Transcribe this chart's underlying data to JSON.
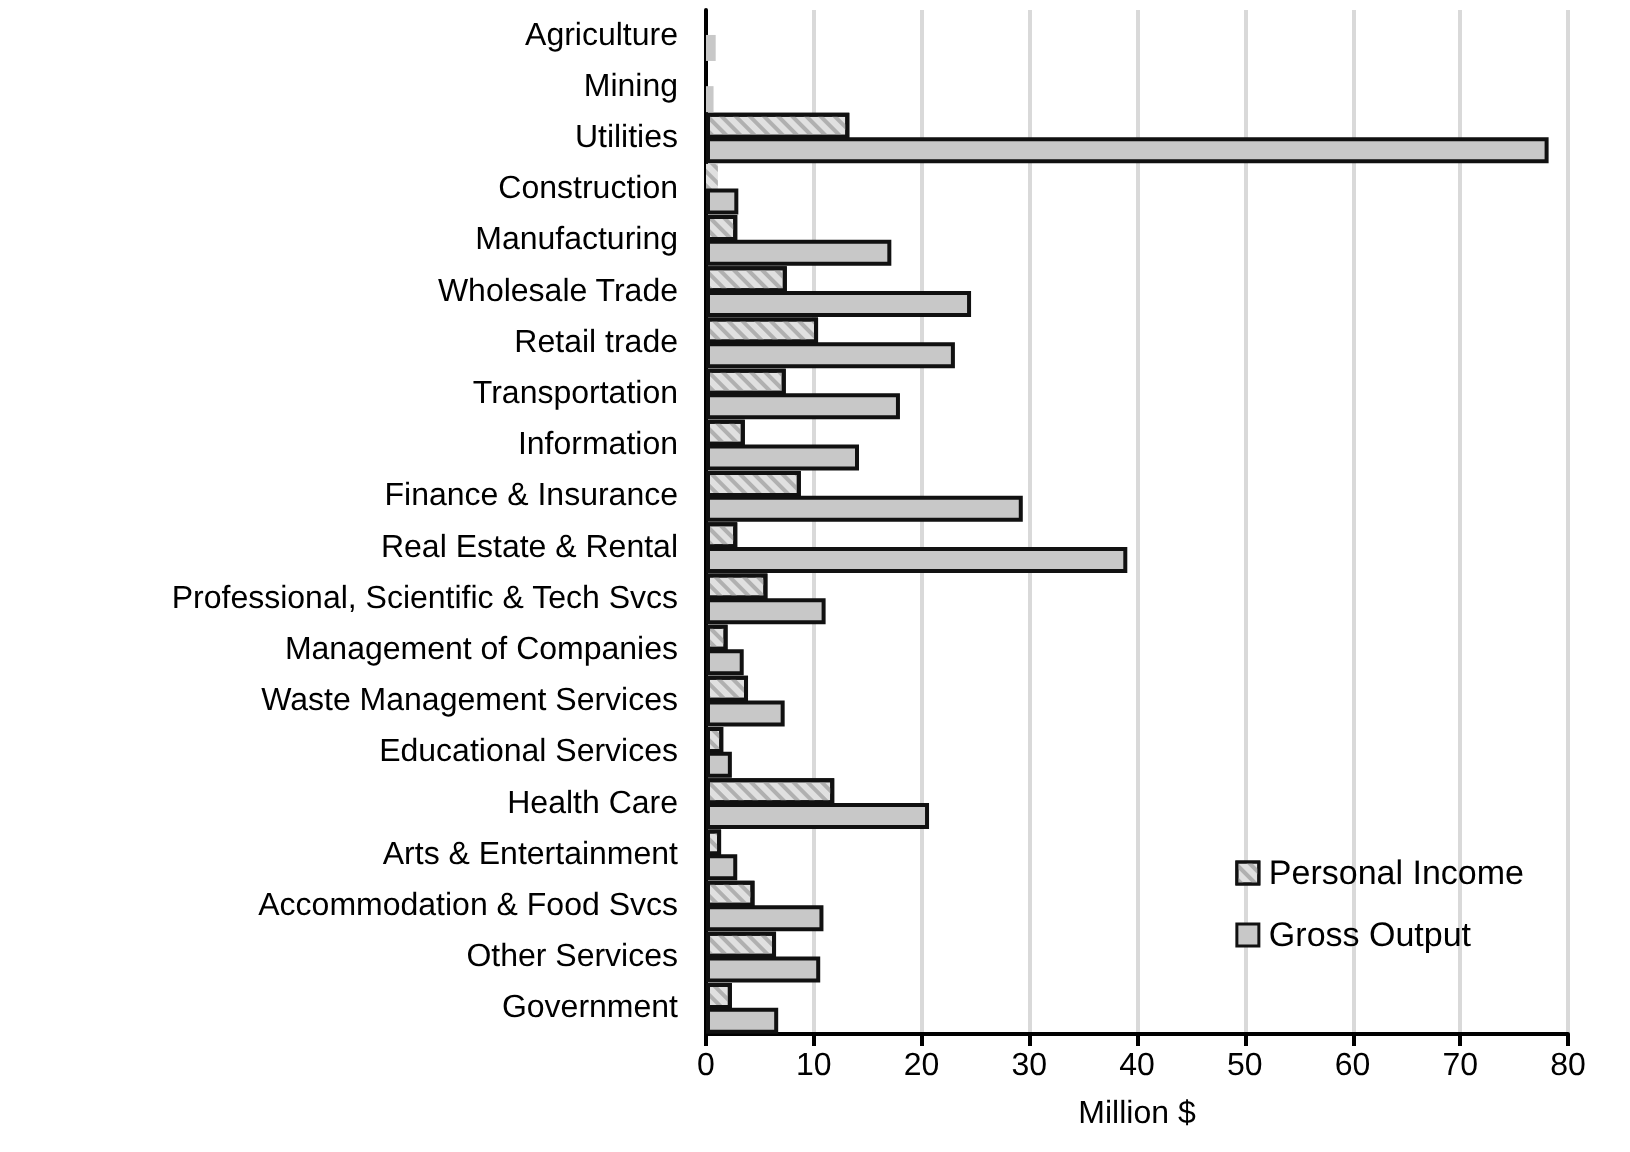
{
  "chart_data": {
    "type": "bar",
    "orientation": "horizontal",
    "xlabel": "Million $",
    "categories": [
      "Agriculture",
      "Mining",
      "Utilities",
      "Construction",
      "Manufacturing",
      "Wholesale Trade",
      "Retail trade",
      "Transportation",
      "Information",
      "Finance & Insurance",
      "Real Estate & Rental",
      "Professional, Scientific & Tech Svcs",
      "Management of Companies",
      "Waste Management Services",
      "Educational Services",
      "Health Care",
      "Arts & Entertainment",
      "Accommodation & Food Svcs",
      "Other Services",
      "Government"
    ],
    "series": [
      {
        "name": "Personal Income",
        "color": "#e0e0e0",
        "values": [
          null,
          null,
          13.3,
          1.1,
          2.9,
          7.5,
          10.4,
          7.4,
          3.6,
          8.8,
          2.9,
          5.7,
          2.0,
          3.9,
          1.6,
          11.9,
          1.4,
          4.5,
          6.5,
          2.4
        ]
      },
      {
        "name": "Gross Output",
        "color": "#c8c8c8",
        "values": [
          0.9,
          0.7,
          78.2,
          3.0,
          17.2,
          24.6,
          23.1,
          18.0,
          14.2,
          29.4,
          39.1,
          11.1,
          3.5,
          7.3,
          2.4,
          20.7,
          2.9,
          10.9,
          10.6,
          6.7
        ]
      }
    ],
    "xlim": [
      0,
      80
    ],
    "xticks": [
      0,
      10,
      20,
      30,
      40,
      50,
      60,
      70,
      80
    ],
    "grid": "x",
    "legend": "bottom right"
  }
}
